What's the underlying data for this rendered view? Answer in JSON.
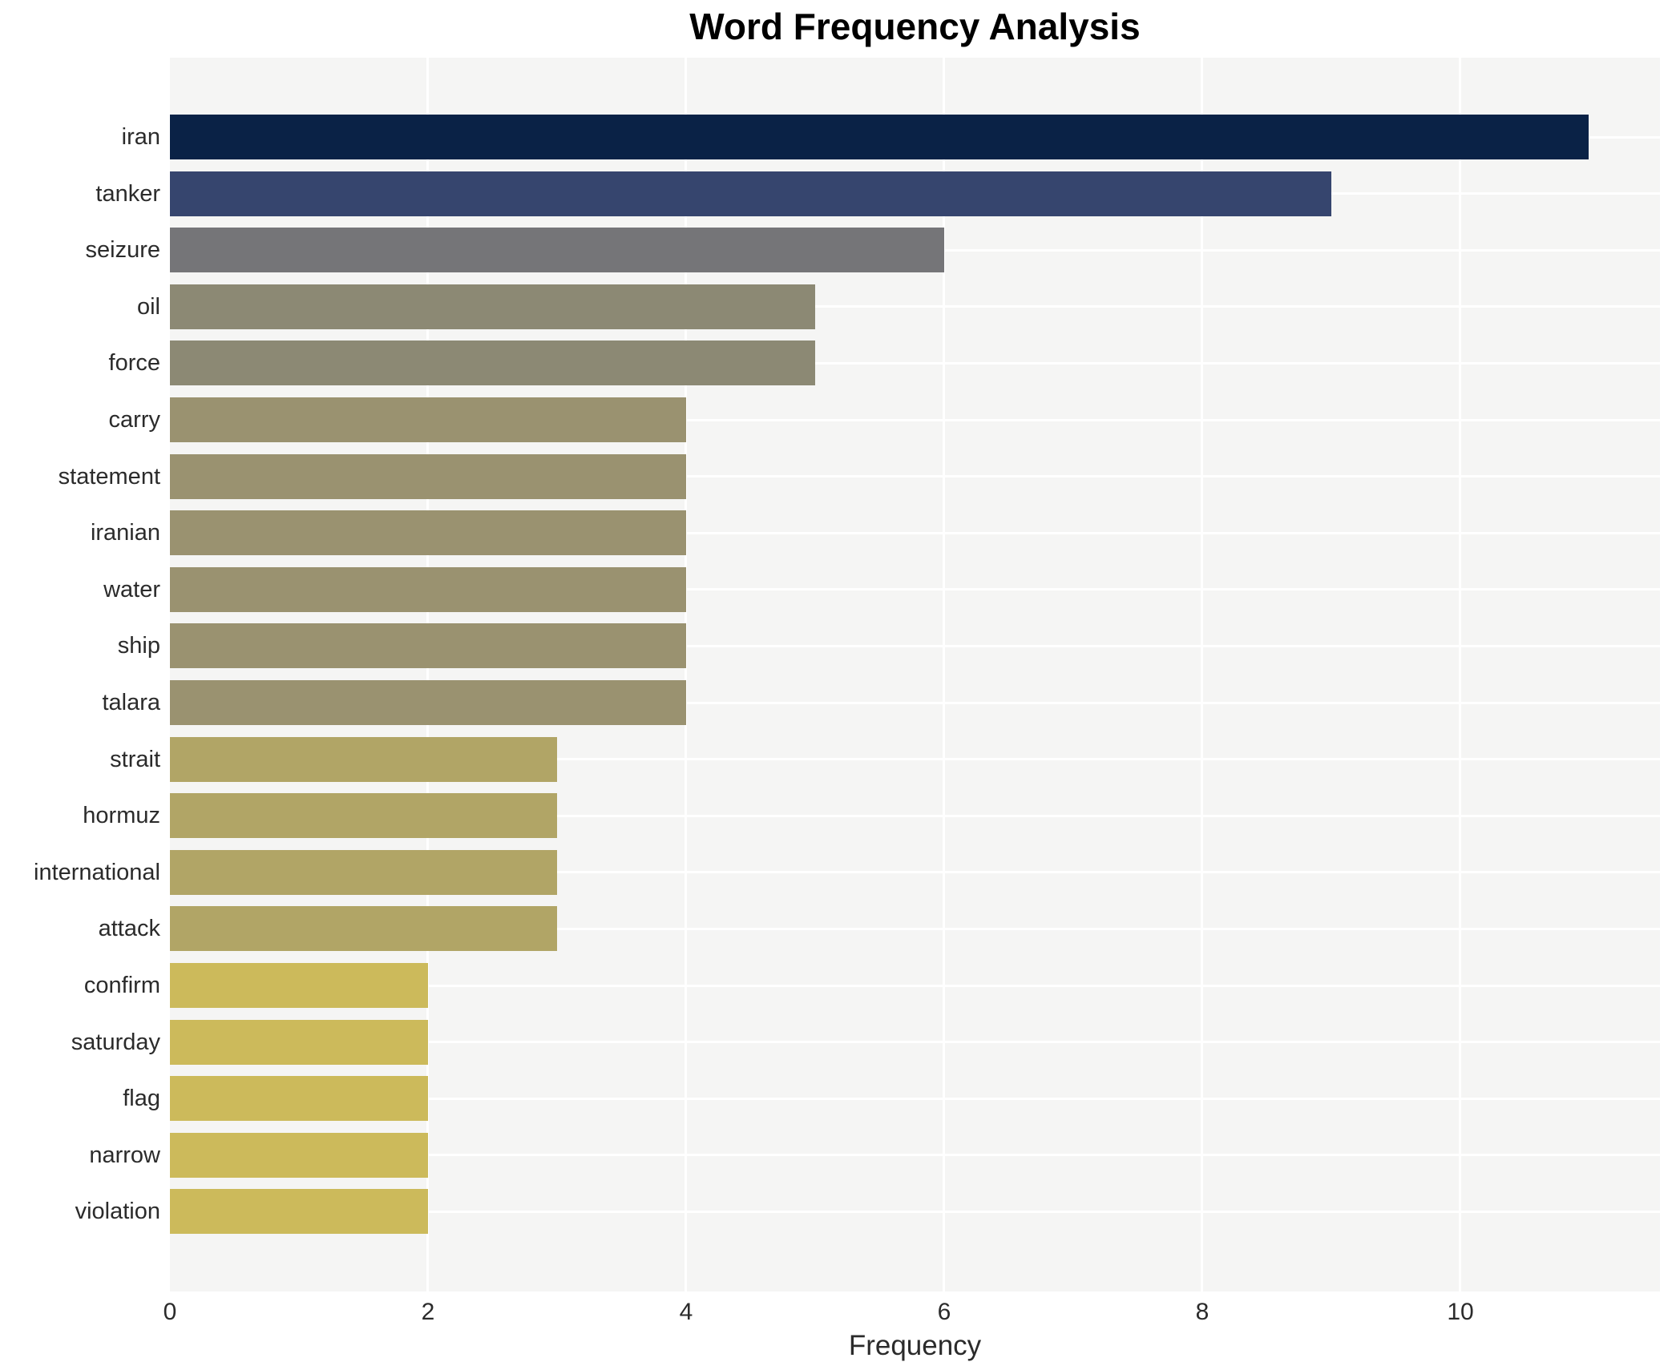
{
  "chart_data": {
    "type": "bar",
    "orientation": "horizontal",
    "title": "Word Frequency Analysis",
    "xlabel": "Frequency",
    "ylabel": "",
    "categories": [
      "iran",
      "tanker",
      "seizure",
      "oil",
      "force",
      "carry",
      "statement",
      "iranian",
      "water",
      "ship",
      "talara",
      "strait",
      "hormuz",
      "international",
      "attack",
      "confirm",
      "saturday",
      "flag",
      "narrow",
      "violation"
    ],
    "values": [
      11,
      9,
      6,
      5,
      5,
      4,
      4,
      4,
      4,
      4,
      4,
      3,
      3,
      3,
      3,
      2,
      2,
      2,
      2,
      2
    ],
    "bar_colors": [
      "#0a2246",
      "#36456e",
      "#757578",
      "#8c8974",
      "#8c8974",
      "#9a9270",
      "#9a9270",
      "#9a9270",
      "#9a9270",
      "#9a9270",
      "#9a9270",
      "#b1a566",
      "#b1a566",
      "#b1a566",
      "#b1a566",
      "#ccba5b",
      "#ccba5b",
      "#ccba5b",
      "#ccba5b",
      "#ccba5b"
    ],
    "xlim": [
      0,
      11.55
    ],
    "xticks": [
      0,
      2,
      4,
      6,
      8,
      10
    ],
    "grid": "on",
    "legend": "none",
    "plot_bg_color": "#f5f5f4",
    "grid_color": "#ffffff",
    "text_color": "#2b2b2b",
    "title_color": "#000000"
  }
}
